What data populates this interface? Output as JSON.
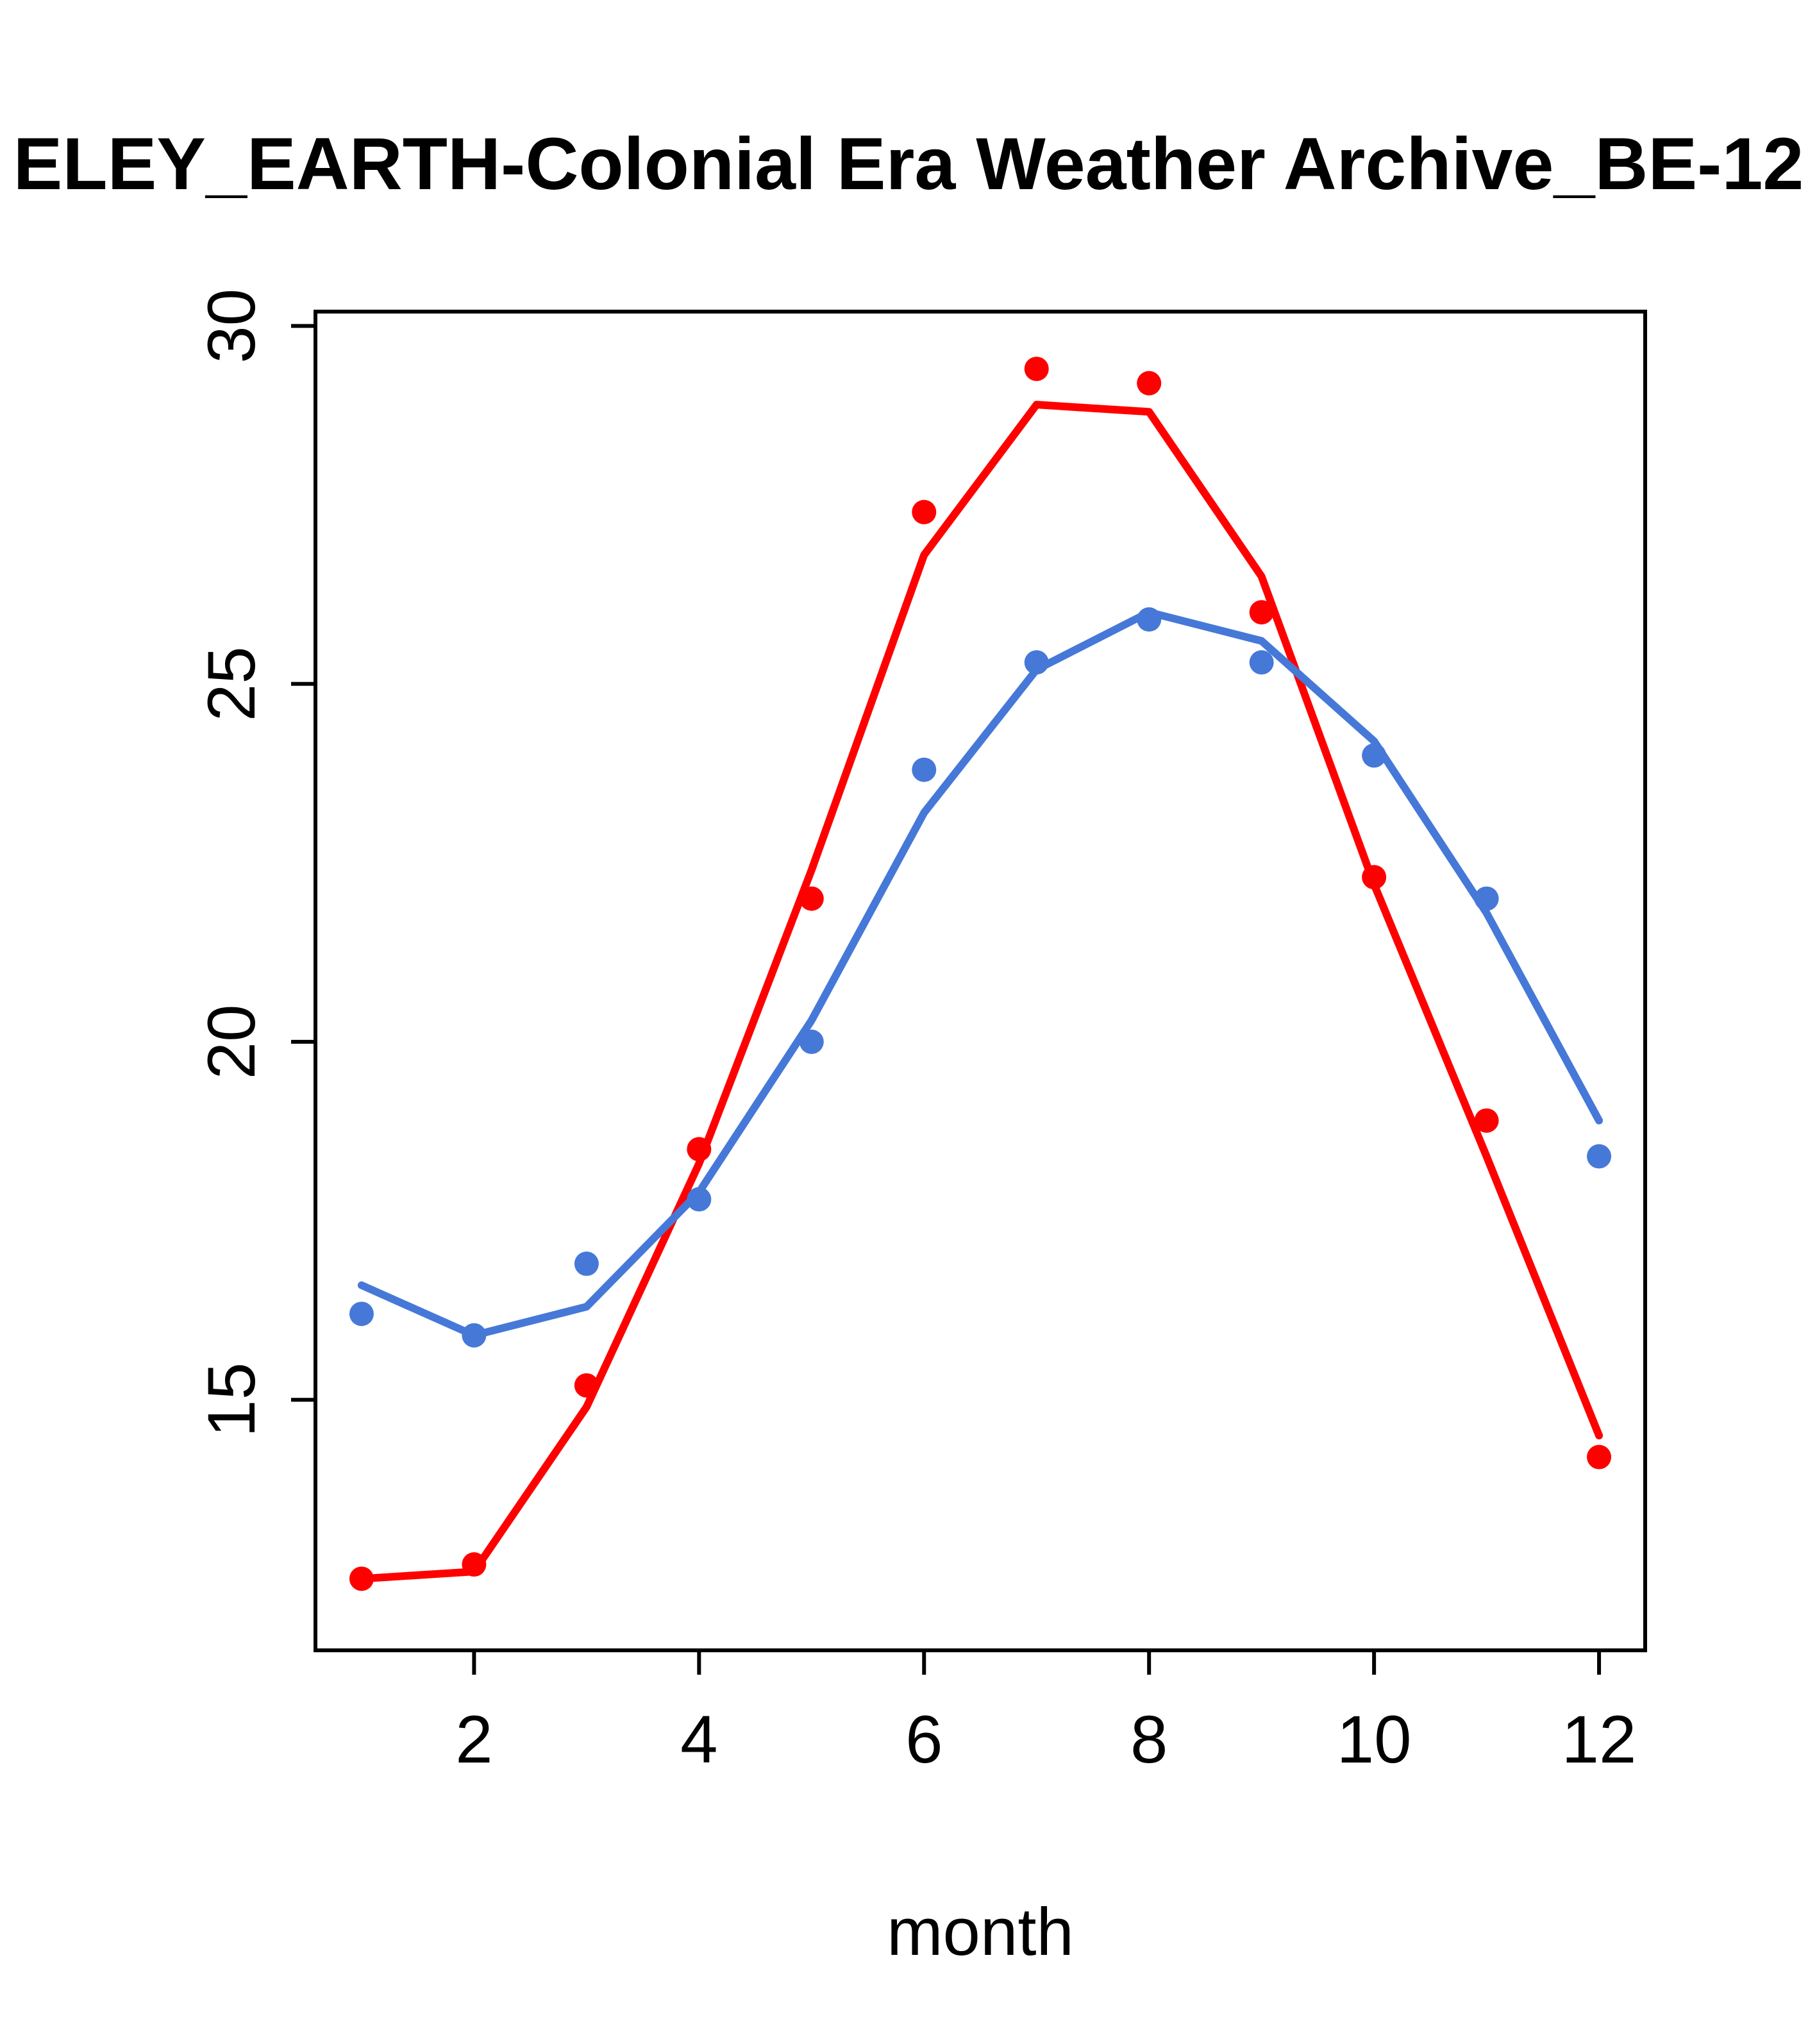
{
  "title": "ELEY_EARTH-Colonial Era Weather Archive_BE-12",
  "chart_data": {
    "type": "line",
    "title": "ELEY_EARTH-Colonial Era Weather Archive_BE-12",
    "xlabel": "month",
    "ylabel": "",
    "x": [
      1,
      2,
      3,
      4,
      5,
      6,
      7,
      8,
      9,
      10,
      11,
      12
    ],
    "xticks": [
      2,
      4,
      6,
      8,
      10,
      12
    ],
    "yticks": [
      15,
      20,
      25,
      30
    ],
    "xlim": [
      0.59,
      12.41
    ],
    "ylim": [
      11.5,
      30.2
    ],
    "grid": false,
    "legend": "none",
    "colors": {
      "series1": "#ff0000",
      "series2": "#4678d8"
    },
    "series": [
      {
        "name": "red-points",
        "style": "points",
        "color": "#ff0000",
        "values": [
          12.5,
          12.7,
          15.2,
          18.5,
          22.0,
          27.4,
          29.4,
          29.2,
          26.0,
          22.3,
          18.9,
          14.2
        ]
      },
      {
        "name": "red-line",
        "style": "line",
        "color": "#ff0000",
        "values": [
          12.5,
          12.6,
          14.9,
          18.3,
          22.4,
          26.8,
          28.9,
          28.8,
          26.5,
          22.2,
          18.4,
          14.5
        ]
      },
      {
        "name": "blue-points",
        "style": "points",
        "color": "#4678d8",
        "values": [
          16.2,
          15.9,
          16.9,
          17.8,
          20.0,
          23.8,
          25.3,
          25.9,
          25.3,
          24.0,
          22.0,
          18.4
        ]
      },
      {
        "name": "blue-line",
        "style": "line",
        "color": "#4678d8",
        "values": [
          16.6,
          15.9,
          16.3,
          17.9,
          20.3,
          23.2,
          25.2,
          26.0,
          25.6,
          24.2,
          21.8,
          18.9
        ]
      }
    ]
  }
}
